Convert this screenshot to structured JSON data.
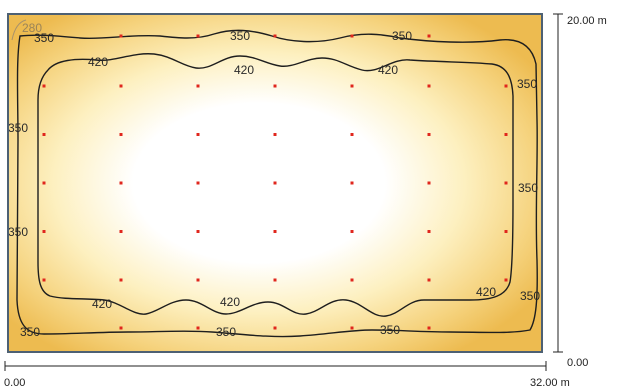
{
  "dimensions": {
    "width_start": "0.00",
    "width_end": "32.00 m",
    "height_start": "0.00",
    "height_end": "20.00 m"
  },
  "isolines": [
    {
      "value": "280",
      "labels": [
        "280"
      ]
    },
    {
      "value": "350",
      "labels": [
        "350",
        "350",
        "350",
        "350",
        "350",
        "350",
        "350",
        "350",
        "350",
        "350",
        "350"
      ]
    },
    {
      "value": "420",
      "labels": [
        "420",
        "420",
        "420",
        "420",
        "420",
        "420"
      ]
    }
  ],
  "measurement_grid": {
    "columns": 7,
    "rows": 5
  },
  "colors": {
    "bright_center": "#ffffff",
    "mid": "#fdf0c0",
    "edge": "#f3c968",
    "corner": "#edbb50",
    "contour": "#1e1e1e",
    "contour_light": "#a8926a",
    "point": "#e0261d",
    "frame": "#4d6073"
  }
}
